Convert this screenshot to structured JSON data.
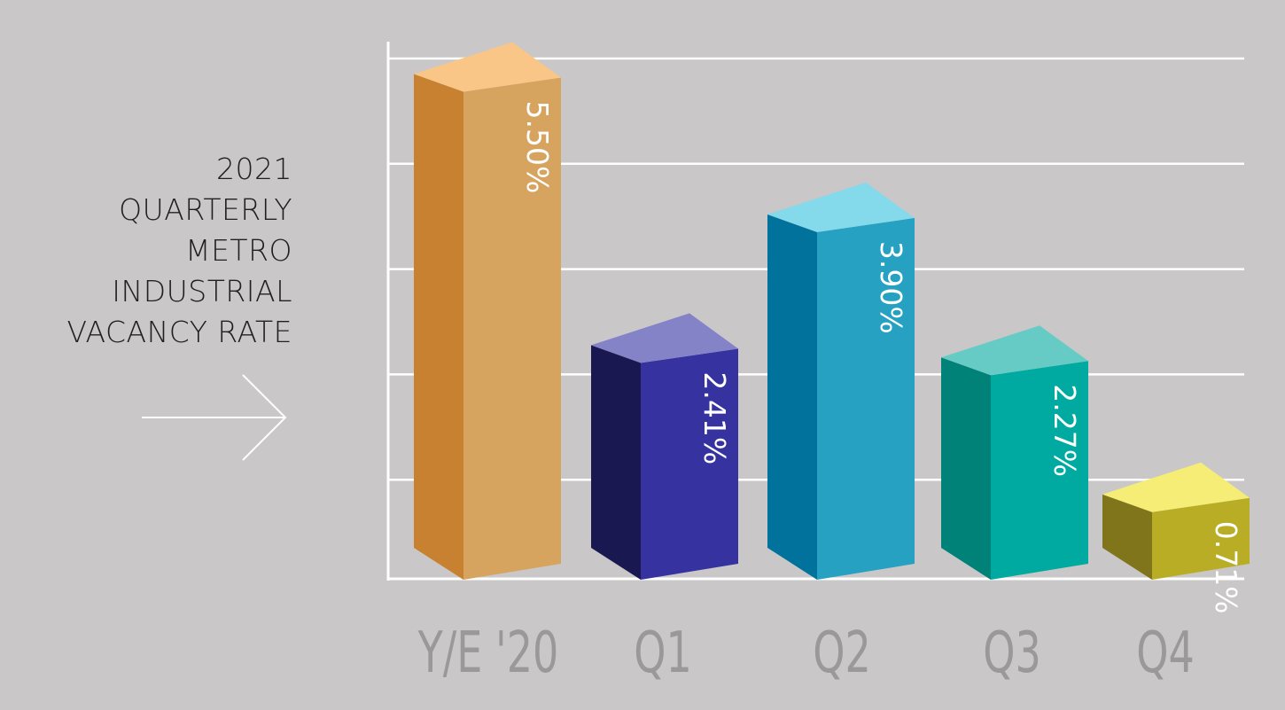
{
  "title_lines": [
    "2021",
    "QUARTERLY",
    "METRO",
    "INDUSTRIAL",
    "VACANCY RATE"
  ],
  "chart_data": {
    "type": "bar",
    "categories": [
      "Y/E '20",
      "Q1",
      "Q2",
      "Q3",
      "Q4"
    ],
    "series": [
      {
        "values": [
          5.5,
          2.41,
          3.9,
          2.27,
          0.71
        ],
        "labels": [
          "5.50%",
          "2.41%",
          "3.90%",
          "2.27%",
          "0.71%"
        ]
      }
    ],
    "ylim": [
      0,
      6
    ],
    "grid": true,
    "bar_styles": [
      {
        "front": "#d7a45f",
        "side": "#c78131",
        "top": "#f9c688"
      },
      {
        "front": "#3633a0",
        "side": "#1a1850",
        "top": "#8583c8"
      },
      {
        "front": "#26a1c2",
        "side": "#00729c",
        "top": "#84d9ea"
      },
      {
        "front": "#00aaa0",
        "side": "#008279",
        "top": "#66cbc4"
      },
      {
        "front": "#b9ad26",
        "side": "#80751b",
        "top": "#f5ed76"
      }
    ]
  }
}
